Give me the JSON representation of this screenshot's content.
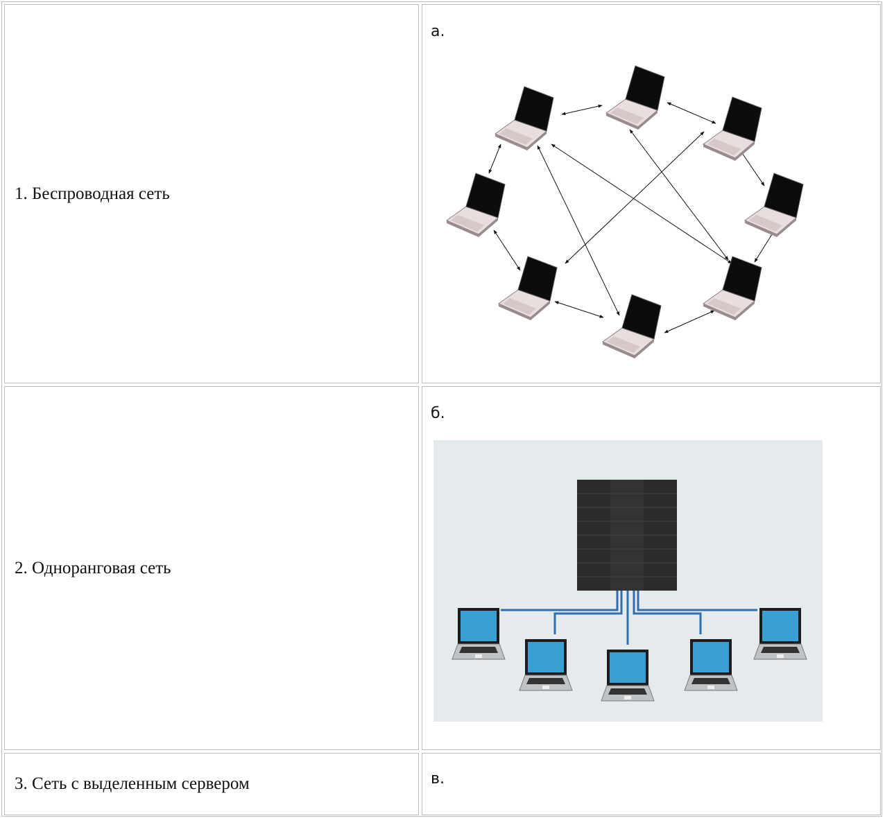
{
  "table": {
    "rows": [
      [
        "1. Беспроводная сеть",
        "а."
      ],
      [
        "2. Одноранговая сеть",
        "б."
      ],
      [
        "3. Сеть с выделенным сервером",
        "в."
      ]
    ]
  }
}
